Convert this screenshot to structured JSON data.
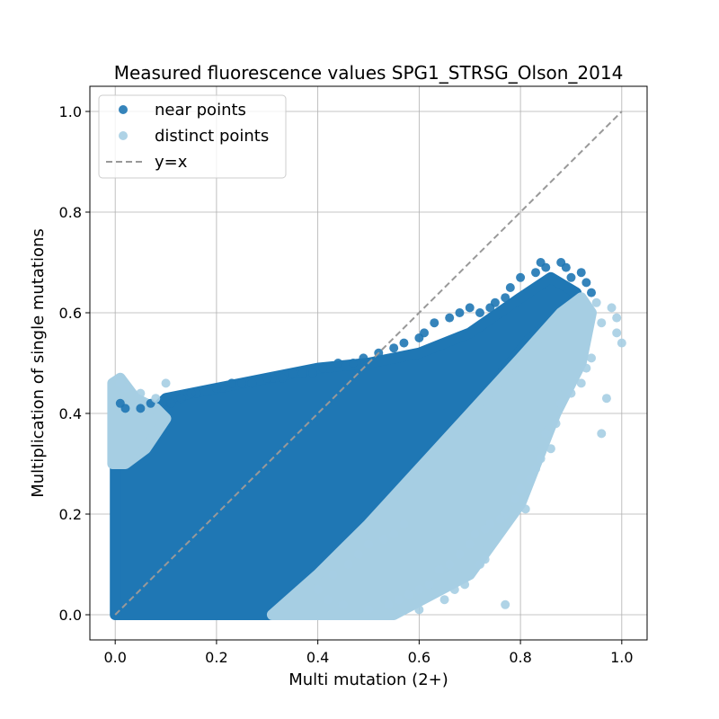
{
  "chart_data": {
    "type": "scatter",
    "title": "Measured fluorescence values SPG1_STRSG_Olson_2014",
    "xlabel": "Multi mutation (2+)",
    "ylabel": "Multiplication of single mutations",
    "xlim": [
      -0.05,
      1.05
    ],
    "ylim": [
      -0.05,
      1.05
    ],
    "xticks": [
      0.0,
      0.2,
      0.4,
      0.6,
      0.8,
      1.0
    ],
    "yticks": [
      0.0,
      0.2,
      0.4,
      0.6,
      0.8,
      1.0
    ],
    "xtick_labels": [
      "0.0",
      "0.2",
      "0.4",
      "0.6",
      "0.8",
      "1.0"
    ],
    "ytick_labels": [
      "0.0",
      "0.2",
      "0.4",
      "0.6",
      "0.8",
      "1.0"
    ],
    "grid": true,
    "legend_position": "top-left",
    "legend": [
      {
        "label": "near points",
        "kind": "marker",
        "color": "#1f77b4"
      },
      {
        "label": "distinct points",
        "kind": "marker",
        "color": "#a6cee3"
      },
      {
        "label": "y=x",
        "kind": "dashed-line",
        "color": "#999999"
      }
    ],
    "series": [
      {
        "name": "near points",
        "color": "#1f77b4",
        "dense_regions": [
          {
            "polygon": [
              [
                0.0,
                0.0
              ],
              [
                0.31,
                0.0
              ],
              [
                0.5,
                0.19
              ],
              [
                0.7,
                0.4
              ],
              [
                0.82,
                0.55
              ],
              [
                0.9,
                0.61
              ],
              [
                0.91,
                0.64
              ],
              [
                0.86,
                0.67
              ],
              [
                0.8,
                0.63
              ],
              [
                0.7,
                0.56
              ],
              [
                0.6,
                0.52
              ],
              [
                0.5,
                0.5
              ],
              [
                0.4,
                0.49
              ],
              [
                0.3,
                0.47
              ],
              [
                0.2,
                0.45
              ],
              [
                0.1,
                0.43
              ],
              [
                0.0,
                0.33
              ]
            ]
          }
        ],
        "points": [
          {
            "x": 0.84,
            "y": 0.7
          },
          {
            "x": 0.88,
            "y": 0.7
          },
          {
            "x": 0.85,
            "y": 0.69
          },
          {
            "x": 0.89,
            "y": 0.69
          },
          {
            "x": 0.92,
            "y": 0.68
          },
          {
            "x": 0.83,
            "y": 0.68
          },
          {
            "x": 0.9,
            "y": 0.67
          },
          {
            "x": 0.8,
            "y": 0.67
          },
          {
            "x": 0.93,
            "y": 0.66
          },
          {
            "x": 0.94,
            "y": 0.64
          },
          {
            "x": 0.78,
            "y": 0.65
          },
          {
            "x": 0.77,
            "y": 0.63
          },
          {
            "x": 0.75,
            "y": 0.62
          },
          {
            "x": 0.74,
            "y": 0.61
          },
          {
            "x": 0.7,
            "y": 0.61
          },
          {
            "x": 0.72,
            "y": 0.6
          },
          {
            "x": 0.68,
            "y": 0.6
          },
          {
            "x": 0.66,
            "y": 0.59
          },
          {
            "x": 0.63,
            "y": 0.58
          },
          {
            "x": 0.61,
            "y": 0.56
          },
          {
            "x": 0.6,
            "y": 0.55
          },
          {
            "x": 0.57,
            "y": 0.54
          },
          {
            "x": 0.55,
            "y": 0.53
          },
          {
            "x": 0.52,
            "y": 0.52
          },
          {
            "x": 0.49,
            "y": 0.51
          },
          {
            "x": 0.47,
            "y": 0.5
          },
          {
            "x": 0.44,
            "y": 0.5
          },
          {
            "x": 0.41,
            "y": 0.49
          },
          {
            "x": 0.39,
            "y": 0.48
          },
          {
            "x": 0.37,
            "y": 0.48
          },
          {
            "x": 0.35,
            "y": 0.48
          },
          {
            "x": 0.33,
            "y": 0.47
          },
          {
            "x": 0.31,
            "y": 0.47
          },
          {
            "x": 0.3,
            "y": 0.47
          },
          {
            "x": 0.27,
            "y": 0.46
          },
          {
            "x": 0.25,
            "y": 0.46
          },
          {
            "x": 0.23,
            "y": 0.46
          },
          {
            "x": 0.21,
            "y": 0.45
          },
          {
            "x": 0.2,
            "y": 0.45
          },
          {
            "x": 0.16,
            "y": 0.44
          },
          {
            "x": 0.15,
            "y": 0.44
          },
          {
            "x": 0.13,
            "y": 0.43
          },
          {
            "x": 0.11,
            "y": 0.42
          },
          {
            "x": 0.07,
            "y": 0.42
          },
          {
            "x": 0.05,
            "y": 0.41
          },
          {
            "x": 0.02,
            "y": 0.41
          },
          {
            "x": 0.01,
            "y": 0.42
          }
        ]
      },
      {
        "name": "distinct points",
        "color": "#a6cee3",
        "dense_regions": [
          {
            "polygon": [
              [
                0.31,
                0.0
              ],
              [
                0.55,
                0.0
              ],
              [
                0.7,
                0.08
              ],
              [
                0.8,
                0.22
              ],
              [
                0.87,
                0.4
              ],
              [
                0.92,
                0.5
              ],
              [
                0.94,
                0.6
              ],
              [
                0.92,
                0.63
              ],
              [
                0.88,
                0.6
              ],
              [
                0.8,
                0.51
              ],
              [
                0.7,
                0.4
              ],
              [
                0.6,
                0.29
              ],
              [
                0.5,
                0.18
              ],
              [
                0.4,
                0.08
              ]
            ]
          },
          {
            "polygon": [
              [
                -0.005,
                0.3
              ],
              [
                0.02,
                0.3
              ],
              [
                0.06,
                0.33
              ],
              [
                0.1,
                0.39
              ],
              [
                0.08,
                0.41
              ],
              [
                0.04,
                0.43
              ],
              [
                0.01,
                0.47
              ],
              [
                -0.005,
                0.46
              ]
            ]
          }
        ],
        "points": [
          {
            "x": 1.0,
            "y": 0.54
          },
          {
            "x": 0.99,
            "y": 0.56
          },
          {
            "x": 0.98,
            "y": 0.61
          },
          {
            "x": 0.99,
            "y": 0.59
          },
          {
            "x": 0.95,
            "y": 0.62
          },
          {
            "x": 0.96,
            "y": 0.58
          },
          {
            "x": 0.97,
            "y": 0.43
          },
          {
            "x": 0.96,
            "y": 0.36
          },
          {
            "x": 0.94,
            "y": 0.51
          },
          {
            "x": 0.93,
            "y": 0.49
          },
          {
            "x": 0.92,
            "y": 0.46
          },
          {
            "x": 0.9,
            "y": 0.44
          },
          {
            "x": 0.88,
            "y": 0.42
          },
          {
            "x": 0.87,
            "y": 0.38
          },
          {
            "x": 0.86,
            "y": 0.33
          },
          {
            "x": 0.85,
            "y": 0.36
          },
          {
            "x": 0.84,
            "y": 0.31
          },
          {
            "x": 0.83,
            "y": 0.29
          },
          {
            "x": 0.82,
            "y": 0.27
          },
          {
            "x": 0.8,
            "y": 0.25
          },
          {
            "x": 0.81,
            "y": 0.21
          },
          {
            "x": 0.79,
            "y": 0.23
          },
          {
            "x": 0.77,
            "y": 0.2
          },
          {
            "x": 0.76,
            "y": 0.19
          },
          {
            "x": 0.74,
            "y": 0.18
          },
          {
            "x": 0.73,
            "y": 0.17
          },
          {
            "x": 0.71,
            "y": 0.16
          },
          {
            "x": 0.7,
            "y": 0.14
          },
          {
            "x": 0.68,
            "y": 0.12
          },
          {
            "x": 0.66,
            "y": 0.1
          },
          {
            "x": 0.64,
            "y": 0.09
          },
          {
            "x": 0.62,
            "y": 0.06
          },
          {
            "x": 0.6,
            "y": 0.05
          },
          {
            "x": 0.58,
            "y": 0.04
          },
          {
            "x": 0.56,
            "y": 0.03
          },
          {
            "x": 0.54,
            "y": 0.02
          },
          {
            "x": 0.65,
            "y": 0.03
          },
          {
            "x": 0.67,
            "y": 0.05
          },
          {
            "x": 0.69,
            "y": 0.06
          },
          {
            "x": 0.72,
            "y": 0.1
          },
          {
            "x": 0.73,
            "y": 0.11
          },
          {
            "x": 0.77,
            "y": 0.02
          },
          {
            "x": 0.6,
            "y": 0.01
          },
          {
            "x": 0.5,
            "y": 0.01
          },
          {
            "x": 0.45,
            "y": 0.02
          },
          {
            "x": 0.42,
            "y": 0.03
          },
          {
            "x": 0.4,
            "y": 0.05
          },
          {
            "x": 0.43,
            "y": 0.08
          },
          {
            "x": 0.46,
            "y": 0.1
          },
          {
            "x": 0.48,
            "y": 0.12
          },
          {
            "x": 0.5,
            "y": 0.14
          },
          {
            "x": 0.53,
            "y": 0.15
          },
          {
            "x": 0.55,
            "y": 0.16
          },
          {
            "x": 0.57,
            "y": 0.18
          },
          {
            "x": 0.1,
            "y": 0.46
          },
          {
            "x": 0.08,
            "y": 0.43
          },
          {
            "x": 0.05,
            "y": 0.44
          },
          {
            "x": 0.02,
            "y": 0.45
          },
          {
            "x": 0.01,
            "y": 0.46
          }
        ]
      }
    ],
    "reference_line": {
      "label": "y=x",
      "x": [
        0.0,
        1.0
      ],
      "y": [
        0.0,
        1.0
      ],
      "style": "dashed",
      "color": "#999999"
    }
  }
}
